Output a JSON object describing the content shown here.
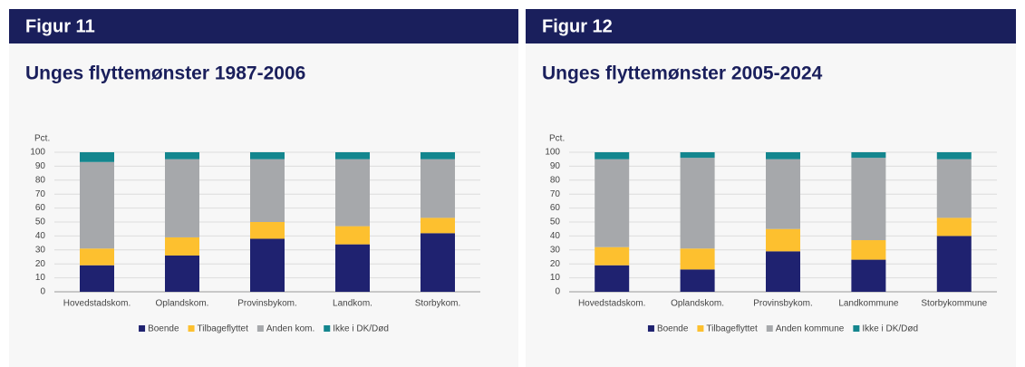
{
  "figures": [
    "Figur 11",
    "Figur 12"
  ],
  "chart_data": [
    {
      "type": "bar",
      "stacked": true,
      "title": "Unges flyttemønster 1987-2006",
      "y_label": "Pct.",
      "categories": [
        "Hovedstadskom.",
        "Oplandskom.",
        "Provinsbykom.",
        "Landkom.",
        "Storbykom."
      ],
      "series": [
        {
          "name": "Boende",
          "color": "#1f2270",
          "values": [
            19,
            26,
            38,
            34,
            42
          ]
        },
        {
          "name": "Tilbageflyttet",
          "color": "#fdc02f",
          "values": [
            12,
            13,
            12,
            13,
            11
          ]
        },
        {
          "name": "Anden kom.",
          "color": "#a6a8ab",
          "values": [
            62,
            56,
            45,
            48,
            42
          ]
        },
        {
          "name": "Ikke i DK/Død",
          "color": "#14868e",
          "values": [
            7,
            5,
            5,
            5,
            5
          ]
        }
      ],
      "ylim": [
        0,
        100
      ],
      "yticks": [
        0,
        10,
        20,
        30,
        40,
        50,
        60,
        70,
        80,
        90,
        100
      ],
      "grid": true,
      "legend": "bottom"
    },
    {
      "type": "bar",
      "stacked": true,
      "title": "Unges flyttemønster 2005-2024",
      "y_label": "Pct.",
      "categories": [
        "Hovedstadskom.",
        "Oplandskom.",
        "Provinsbykom.",
        "Landkommune",
        "Storbykommune"
      ],
      "series": [
        {
          "name": "Boende",
          "color": "#1f2270",
          "values": [
            19,
            16,
            29,
            23,
            40
          ]
        },
        {
          "name": "Tilbageflyttet",
          "color": "#fdc02f",
          "values": [
            13,
            15,
            16,
            14,
            13
          ]
        },
        {
          "name": "Anden kommune",
          "color": "#a6a8ab",
          "values": [
            63,
            65,
            50,
            59,
            42
          ]
        },
        {
          "name": "Ikke i DK/Død",
          "color": "#14868e",
          "values": [
            5,
            4,
            5,
            4,
            5
          ]
        }
      ],
      "ylim": [
        0,
        100
      ],
      "yticks": [
        0,
        10,
        20,
        30,
        40,
        50,
        60,
        70,
        80,
        90,
        100
      ],
      "grid": true,
      "legend": "bottom"
    }
  ]
}
